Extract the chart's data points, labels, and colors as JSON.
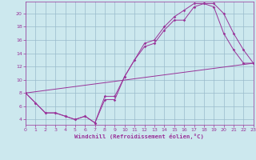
{
  "xlabel": "Windchill (Refroidissement éolien,°C)",
  "bg_color": "#cce8ee",
  "line_color": "#993399",
  "grid_color": "#99bbcc",
  "xmin": 0,
  "xmax": 23,
  "ymin": 3.2,
  "ymax": 21.8,
  "yticks": [
    4,
    6,
    8,
    10,
    12,
    14,
    16,
    18,
    20
  ],
  "xticks": [
    0,
    1,
    2,
    3,
    4,
    5,
    6,
    7,
    8,
    9,
    10,
    11,
    12,
    13,
    14,
    15,
    16,
    17,
    18,
    19,
    20,
    21,
    22,
    23
  ],
  "line1_x": [
    0,
    1,
    2,
    3,
    4,
    5,
    6,
    7,
    8,
    9,
    10,
    11,
    12,
    13,
    14,
    15,
    16,
    17,
    18,
    19,
    20,
    21,
    22,
    23
  ],
  "line1_y": [
    8.0,
    6.5,
    5.0,
    5.0,
    4.5,
    4.0,
    4.5,
    3.5,
    7.0,
    7.0,
    10.5,
    13.0,
    15.0,
    15.5,
    17.5,
    19.0,
    19.0,
    21.0,
    21.5,
    21.0,
    17.0,
    14.5,
    12.5,
    12.5
  ],
  "line2_x": [
    0,
    1,
    2,
    3,
    4,
    5,
    6,
    7,
    8,
    9,
    10,
    11,
    12,
    13,
    14,
    15,
    16,
    17,
    18,
    19,
    20,
    21,
    22,
    23
  ],
  "line2_y": [
    8.0,
    6.5,
    5.0,
    5.0,
    4.5,
    4.0,
    4.5,
    3.5,
    7.5,
    7.5,
    10.5,
    13.0,
    15.5,
    16.0,
    18.0,
    19.5,
    20.5,
    21.5,
    21.5,
    21.5,
    20.0,
    17.0,
    14.5,
    12.5
  ],
  "line3_x": [
    0,
    23
  ],
  "line3_y": [
    8.0,
    12.5
  ],
  "marker_size": 1.8,
  "line_width": 0.7,
  "tick_fontsize": 4.5,
  "xlabel_fontsize": 5.2
}
